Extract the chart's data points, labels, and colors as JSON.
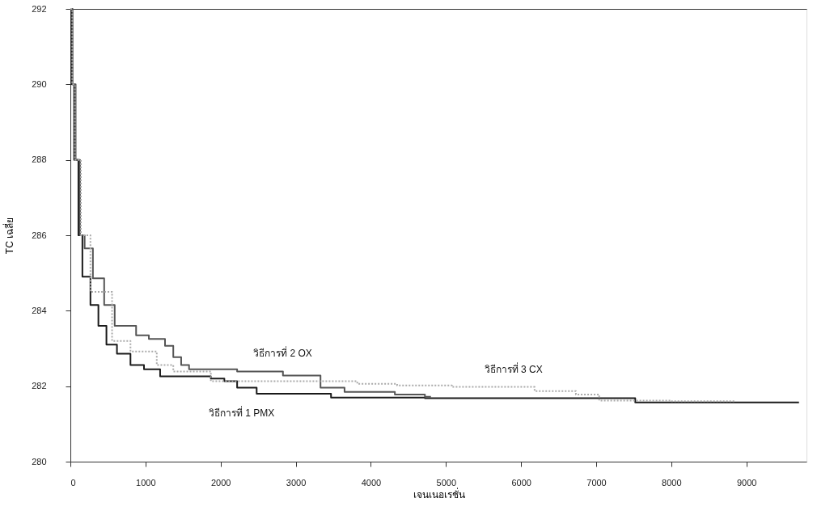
{
  "chart_data": {
    "type": "step",
    "xlabel": "เจนเนอเรชั่น",
    "ylabel": "TC เฉลี่ย",
    "xlim": [
      0,
      9800
    ],
    "xticks": [
      0,
      1000,
      2000,
      3000,
      4000,
      5000,
      6000,
      7000,
      8000,
      9000
    ],
    "ylim": [
      280,
      292
    ],
    "yticks": [
      280,
      282,
      284,
      286,
      288,
      290,
      292
    ],
    "grid": false,
    "legend": false,
    "marker": "none",
    "series": [
      {
        "name": "วิธีการที่ 1 PMX",
        "color": "#1a1a1a",
        "line_style": "solid",
        "x": [
          0,
          20,
          50,
          107,
          160,
          267,
          373,
          480,
          620,
          800,
          980,
          1195,
          1870,
          2050,
          2220,
          2480,
          3290,
          3470,
          4720,
          7520,
          9700
        ],
        "values": [
          292,
          290,
          288,
          286,
          284.9,
          284.15,
          283.6,
          283.1,
          282.86,
          282.56,
          282.45,
          282.26,
          282.2,
          282.13,
          281.96,
          281.8,
          281.8,
          281.7,
          281.68,
          281.57,
          281.57
        ]
      },
      {
        "name": "วิธีการที่ 2 OX",
        "color": "#555555",
        "line_style": "solid",
        "x": [
          0,
          30,
          70,
          128,
          190,
          300,
          450,
          590,
          875,
          1045,
          1260,
          1370,
          1475,
          1580,
          2220,
          2830,
          3330,
          3650,
          4320,
          4720,
          4800
        ],
        "values": [
          292,
          290,
          288,
          286,
          285.65,
          284.86,
          284.15,
          283.6,
          283.35,
          283.25,
          283.07,
          282.77,
          282.56,
          282.45,
          282.39,
          282.28,
          281.96,
          281.85,
          281.78,
          281.72,
          281.72
        ]
      },
      {
        "name": "วิธีการที่ 3 CX",
        "color": "#aaaaaa",
        "line_style": "dotted",
        "x": [
          0,
          25,
          60,
          140,
          267,
          555,
          800,
          1150,
          1370,
          1870,
          3820,
          4350,
          5080,
          6180,
          6730,
          7040,
          8000,
          8840
        ],
        "values": [
          292,
          290,
          288,
          286,
          284.5,
          283.2,
          282.92,
          282.56,
          282.39,
          282.13,
          282.06,
          282.02,
          281.98,
          281.87,
          281.78,
          281.62,
          281.6,
          281.6
        ]
      }
    ]
  }
}
